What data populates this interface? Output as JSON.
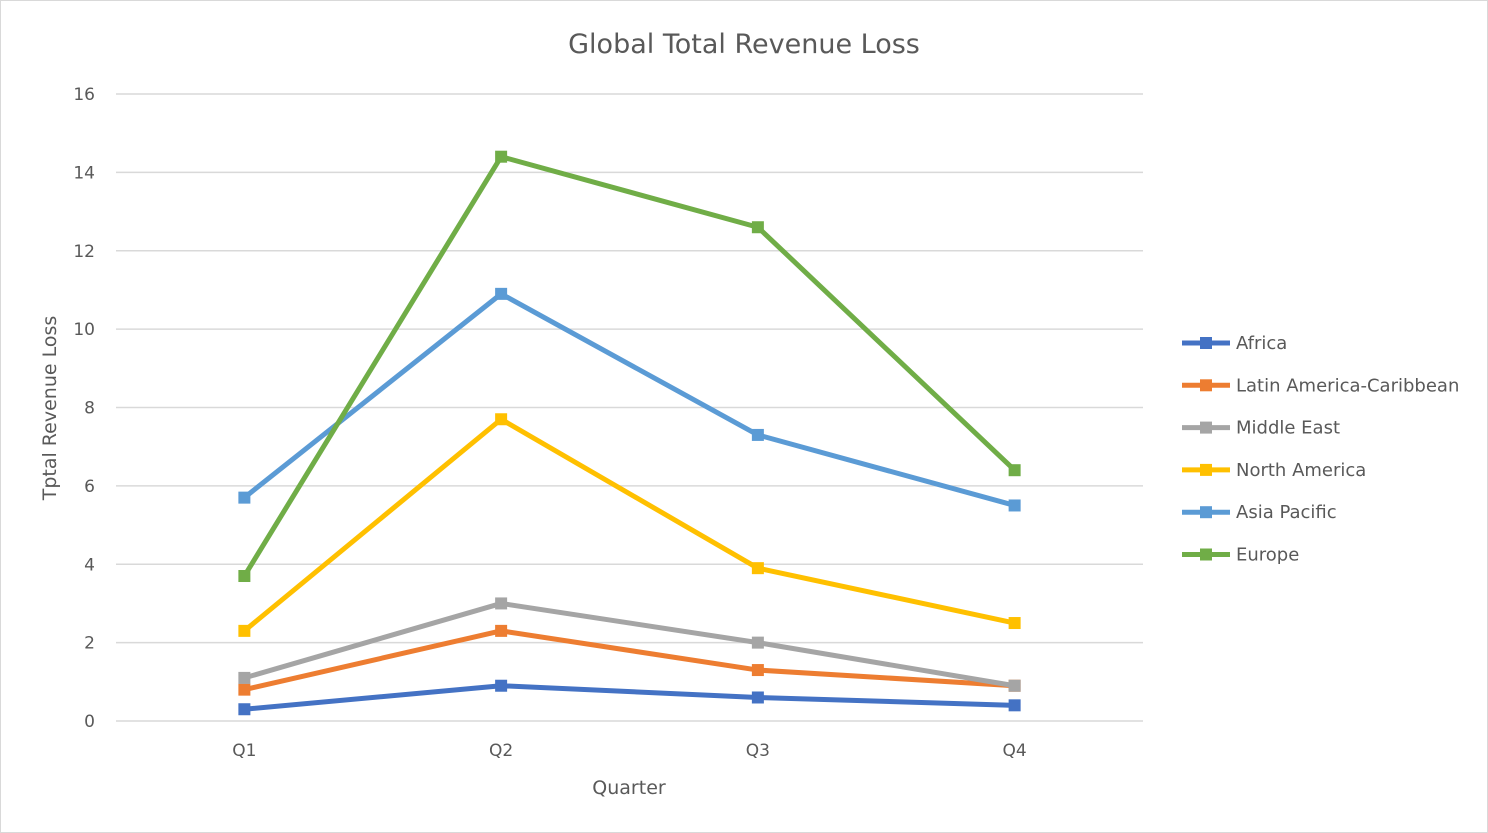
{
  "chart_data": {
    "type": "line",
    "title": "Global Total Revenue Loss",
    "xlabel": "Quarter",
    "ylabel": "Tptal Revenue Loss",
    "categories": [
      "Q1",
      "Q2",
      "Q3",
      "Q4"
    ],
    "ylim": [
      0,
      16
    ],
    "yticks": [
      "0",
      "2",
      "4",
      "6",
      "8",
      "10",
      "12",
      "14",
      "16"
    ],
    "grid": true,
    "legend_position": "right",
    "series": [
      {
        "name": "Africa",
        "color": "#4472C4",
        "values": [
          0.3,
          0.9,
          0.6,
          0.4
        ]
      },
      {
        "name": "Latin America-Caribbean",
        "color": "#ED7D31",
        "values": [
          0.8,
          2.3,
          1.3,
          0.9
        ]
      },
      {
        "name": "Middle East",
        "color": "#A5A5A5",
        "values": [
          1.1,
          3.0,
          2.0,
          0.9
        ]
      },
      {
        "name": "North America",
        "color": "#FFC000",
        "values": [
          2.3,
          7.7,
          3.9,
          2.5
        ]
      },
      {
        "name": "Asia Pacific",
        "color": "#5B9BD5",
        "values": [
          5.7,
          10.9,
          7.3,
          5.5
        ]
      },
      {
        "name": "Europe",
        "color": "#70AD47",
        "values": [
          3.7,
          14.4,
          12.6,
          6.4
        ]
      }
    ]
  }
}
